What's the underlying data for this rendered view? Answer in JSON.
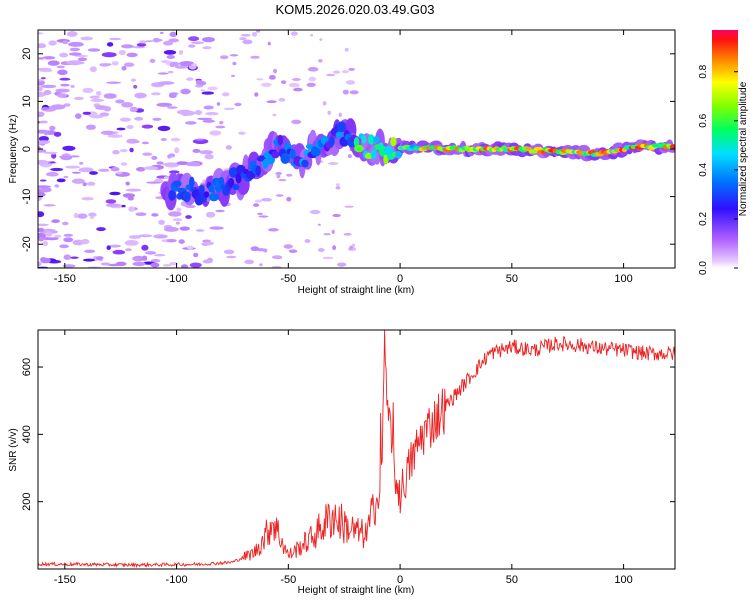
{
  "title": "KOM5.2026.020.03.49.G03",
  "chart_data": [
    {
      "type": "heatmap",
      "title": "KOM5.2026.020.03.49.G03",
      "xlabel": "Height of straight line (km)",
      "ylabel": "Frequency (Hz)",
      "xlim": [
        -162,
        123
      ],
      "ylim": [
        -25,
        25
      ],
      "x_ticks": [
        -150,
        -100,
        -50,
        0,
        50,
        100
      ],
      "y_ticks": [
        -20,
        -10,
        0,
        10,
        20
      ],
      "colorbar": {
        "label": "Normalized spectral amplitude",
        "range": [
          0,
          0.97
        ],
        "ticks": [
          0.0,
          0.2,
          0.4,
          0.6,
          0.8
        ],
        "colormap": "rainbow (light violet to red)"
      },
      "ridge": {
        "x": [
          -100,
          -90,
          -80,
          -70,
          -63,
          -55,
          -45,
          -35,
          -25,
          -15,
          -5,
          0,
          10,
          30,
          50,
          70,
          90,
          95,
          105,
          123
        ],
        "y": [
          -8.5,
          -9,
          -8,
          -6,
          -3,
          1,
          -2,
          1,
          3,
          0.5,
          -0.5,
          0.3,
          0.2,
          0,
          0,
          -0.5,
          -1,
          -0.5,
          0.5,
          0.5
        ]
      }
    },
    {
      "type": "line",
      "xlabel": "Height of straight line (km)",
      "ylabel": "SNR (v/v)",
      "xlim": [
        -162,
        123
      ],
      "ylim": [
        0,
        710
      ],
      "x_ticks": [
        -150,
        -100,
        -50,
        0,
        50,
        100
      ],
      "y_ticks": [
        200,
        400,
        600
      ],
      "series": [
        {
          "color": "#ee2222",
          "x": [
            -162,
            -120,
            -90,
            -75,
            -65,
            -60,
            -57,
            -50,
            -40,
            -30,
            -25,
            -20,
            -15,
            -12,
            -9,
            -8,
            -7,
            -5,
            -3,
            0,
            5,
            10,
            20,
            30,
            40,
            50,
            60,
            70,
            80,
            90,
            100,
            110,
            123
          ],
          "values": [
            15,
            12,
            14,
            20,
            50,
            100,
            145,
            40,
            90,
            160,
            130,
            110,
            100,
            170,
            220,
            300,
            660,
            450,
            300,
            220,
            320,
            400,
            480,
            560,
            640,
            660,
            650,
            670,
            665,
            655,
            650,
            640,
            640
          ]
        }
      ]
    }
  ],
  "labels": {
    "top_xlabel": "Height of straight line (km)",
    "top_ylabel": "Frequency (Hz)",
    "bottom_xlabel": "Height of straight line (km)",
    "bottom_ylabel": "SNR (v/v)",
    "colorbar_label": "Normalized spectral amplitude"
  }
}
